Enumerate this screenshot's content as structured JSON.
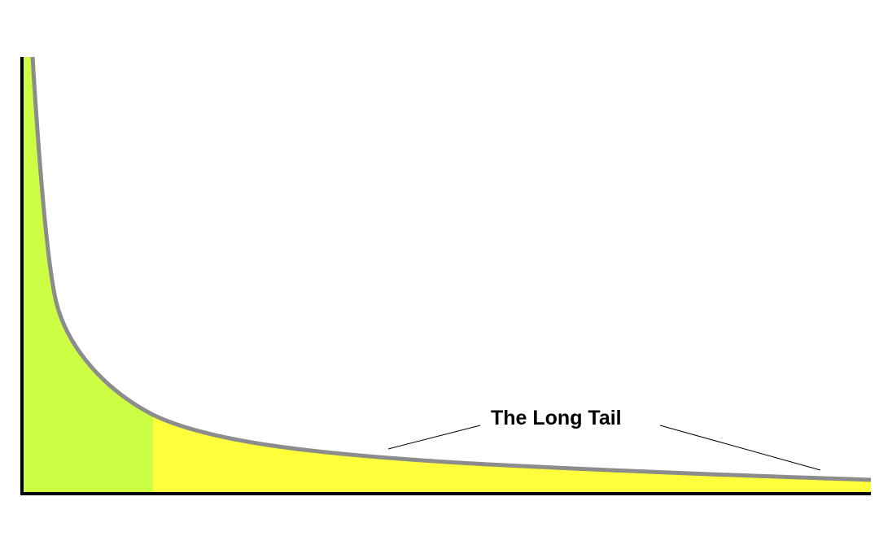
{
  "annotation": {
    "label": "The Long Tail"
  },
  "colors": {
    "head_fill": "#ccff44",
    "tail_fill": "#ffff3c",
    "curve": "#8c8c8c",
    "axes": "#000000"
  }
}
